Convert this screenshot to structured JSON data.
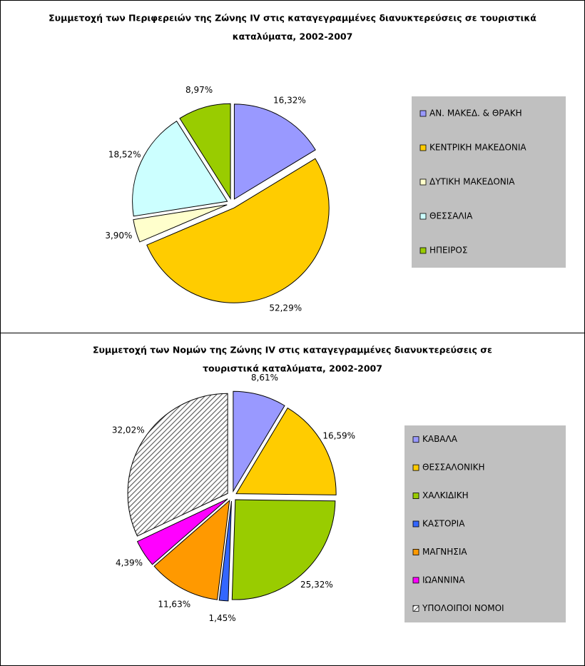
{
  "chart_data": [
    {
      "type": "pie",
      "title": [
        "Συμμετοχή των Περιφερειών της Ζώνης IV στις καταγεγραμμένες διανυκτερεύσεις σε τουριστικά",
        "καταλύματα, 2002-2007"
      ],
      "categories": [
        "ΑΝ. ΜΑΚΕΔ. & ΘΡΑΚΗ",
        "ΚΕΝΤΡΙΚΗ ΜΑΚΕΔΟΝΙΑ",
        "ΔΥΤΙΚΗ ΜΑΚΕΔΟΝΙΑ",
        "ΘΕΣΣΑΛΙΑ",
        "ΗΠΕΙΡΟΣ"
      ],
      "values": [
        16.32,
        52.29,
        3.9,
        18.52,
        8.97
      ],
      "value_labels": [
        "16,32%",
        "52,29%",
        "3,90%",
        "18,52%",
        "8,97%"
      ],
      "colors": [
        "#9999ff",
        "#ffcc00",
        "#ffffcc",
        "#ccffff",
        "#99cc00"
      ],
      "legend": "right"
    },
    {
      "type": "pie",
      "title": [
        "Συμμετοχή των Νομών της Ζώνης IV στις καταγεγραμμένες διανυκτερεύσεις σε",
        "τουριστικά καταλύματα, 2002-2007"
      ],
      "categories": [
        "ΚΑΒΑΛΑ",
        "ΘΕΣΣΑΛΟΝΙΚΗ",
        "ΧΑΛΚΙΔΙΚΗ",
        "ΚΑΣΤΟΡΙΑ",
        "ΜΑΓΝΗΣΙΑ",
        "ΙΩΑΝΝΙΝΑ",
        "ΥΠΟΛΟΙΠΟΙ ΝΟΜΟΙ"
      ],
      "values": [
        8.61,
        16.59,
        25.32,
        1.45,
        11.63,
        4.39,
        32.02
      ],
      "value_labels": [
        "8,61%",
        "16,59%",
        "25,32%",
        "1,45%",
        "11,63%",
        "4,39%",
        "32,02%"
      ],
      "colors": [
        "#9999ff",
        "#ffcc00",
        "#99cc00",
        "#3366ff",
        "#ff9900",
        "#ff00ff",
        "hatch"
      ],
      "legend": "right"
    }
  ]
}
